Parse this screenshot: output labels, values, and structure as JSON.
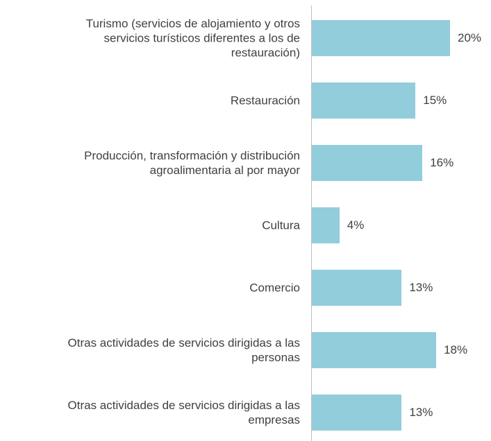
{
  "chart_data": {
    "type": "bar",
    "orientation": "horizontal",
    "categories": [
      "Turismo (servicios de alojamiento y otros\nservicios turísticos diferentes a los de\nrestauración)",
      "Restauración",
      "Producción, transformación y distribución\nagroalimentaria al por mayor",
      "Cultura",
      "Comercio",
      "Otras actividades de servicios dirigidas a las\npersonas",
      "Otras actividades de servicios dirigidas a las\nempresas"
    ],
    "values": [
      20,
      15,
      16,
      4,
      13,
      18,
      13
    ],
    "value_labels": [
      "20%",
      "15%",
      "16%",
      "4%",
      "13%",
      "18%",
      "13%"
    ],
    "color": "#92cddc"
  }
}
